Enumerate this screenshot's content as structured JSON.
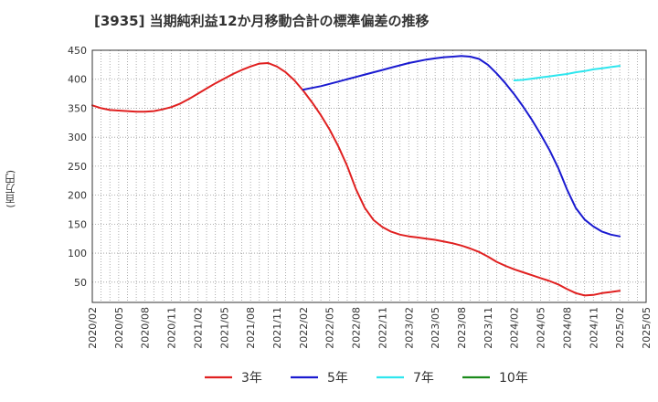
{
  "chart_data": {
    "type": "line",
    "title": "[3935]  当期純利益12か月移動合計の標準偏差の推移",
    "ylabel": "(百万円)",
    "xlabel": "",
    "ylim": [
      15,
      450
    ],
    "yticks": [
      50,
      100,
      150,
      200,
      250,
      300,
      350,
      400,
      450
    ],
    "x_range": [
      "2020-02",
      "2025-05"
    ],
    "xtick_labels": [
      "2020/02",
      "2020/05",
      "2020/08",
      "2020/11",
      "2021/02",
      "2021/05",
      "2021/08",
      "2021/11",
      "2022/02",
      "2022/05",
      "2022/08",
      "2022/11",
      "2023/02",
      "2023/05",
      "2023/08",
      "2023/11",
      "2024/02",
      "2024/05",
      "2024/08",
      "2024/11",
      "2025/02",
      "2025/05"
    ],
    "grid": true,
    "legend_position": "bottom",
    "series": [
      {
        "name": "3年",
        "color": "#e02020",
        "x": [
          "2020/02",
          "2020/03",
          "2020/04",
          "2020/05",
          "2020/06",
          "2020/07",
          "2020/08",
          "2020/09",
          "2020/10",
          "2020/11",
          "2020/12",
          "2021/01",
          "2021/02",
          "2021/03",
          "2021/04",
          "2021/05",
          "2021/06",
          "2021/07",
          "2021/08",
          "2021/09",
          "2021/10",
          "2021/11",
          "2021/12",
          "2022/01",
          "2022/02",
          "2022/03",
          "2022/04",
          "2022/05",
          "2022/06",
          "2022/07",
          "2022/08",
          "2022/09",
          "2022/10",
          "2022/11",
          "2022/12",
          "2023/01",
          "2023/02",
          "2023/03",
          "2023/04",
          "2023/05",
          "2023/06",
          "2023/07",
          "2023/08",
          "2023/09",
          "2023/10",
          "2023/11",
          "2023/12",
          "2024/01",
          "2024/02",
          "2024/03",
          "2024/04",
          "2024/05",
          "2024/06",
          "2024/07",
          "2024/08",
          "2024/09",
          "2024/10",
          "2024/11",
          "2024/12",
          "2025/01",
          "2025/02"
        ],
        "values": [
          355,
          350,
          347,
          346,
          345,
          344,
          344,
          345,
          348,
          352,
          358,
          366,
          375,
          384,
          393,
          401,
          409,
          416,
          422,
          427,
          428,
          422,
          412,
          398,
          380,
          360,
          338,
          313,
          284,
          250,
          210,
          178,
          157,
          145,
          137,
          132,
          129,
          127,
          125,
          123,
          120,
          117,
          113,
          108,
          102,
          94,
          85,
          78,
          72,
          67,
          62,
          57,
          52,
          46,
          38,
          31,
          27,
          28,
          31,
          33,
          35
        ]
      },
      {
        "name": "5年",
        "color": "#1a1ad0",
        "x": [
          "2022/02",
          "2022/03",
          "2022/04",
          "2022/05",
          "2022/06",
          "2022/07",
          "2022/08",
          "2022/09",
          "2022/10",
          "2022/11",
          "2022/12",
          "2023/01",
          "2023/02",
          "2023/03",
          "2023/04",
          "2023/05",
          "2023/06",
          "2023/07",
          "2023/08",
          "2023/09",
          "2023/10",
          "2023/11",
          "2023/12",
          "2024/01",
          "2024/02",
          "2024/03",
          "2024/04",
          "2024/05",
          "2024/06",
          "2024/07",
          "2024/08",
          "2024/09",
          "2024/10",
          "2024/11",
          "2024/12",
          "2025/01",
          "2025/02"
        ],
        "values": [
          382,
          385,
          388,
          392,
          396,
          400,
          404,
          408,
          412,
          416,
          420,
          424,
          428,
          431,
          434,
          436,
          438,
          439,
          440,
          439,
          435,
          425,
          410,
          393,
          374,
          353,
          330,
          305,
          278,
          247,
          210,
          178,
          158,
          146,
          137,
          132,
          129
        ]
      },
      {
        "name": "7年",
        "color": "#2ee6ee",
        "x": [
          "2024/02",
          "2024/03",
          "2024/04",
          "2024/05",
          "2024/06",
          "2024/07",
          "2024/08",
          "2024/09",
          "2024/10",
          "2024/11",
          "2024/12",
          "2025/01",
          "2025/02"
        ],
        "values": [
          398,
          399,
          401,
          403,
          405,
          407,
          409,
          412,
          414,
          417,
          419,
          421,
          423
        ]
      },
      {
        "name": "10年",
        "color": "#1a8a1a",
        "x": [],
        "values": []
      }
    ]
  }
}
